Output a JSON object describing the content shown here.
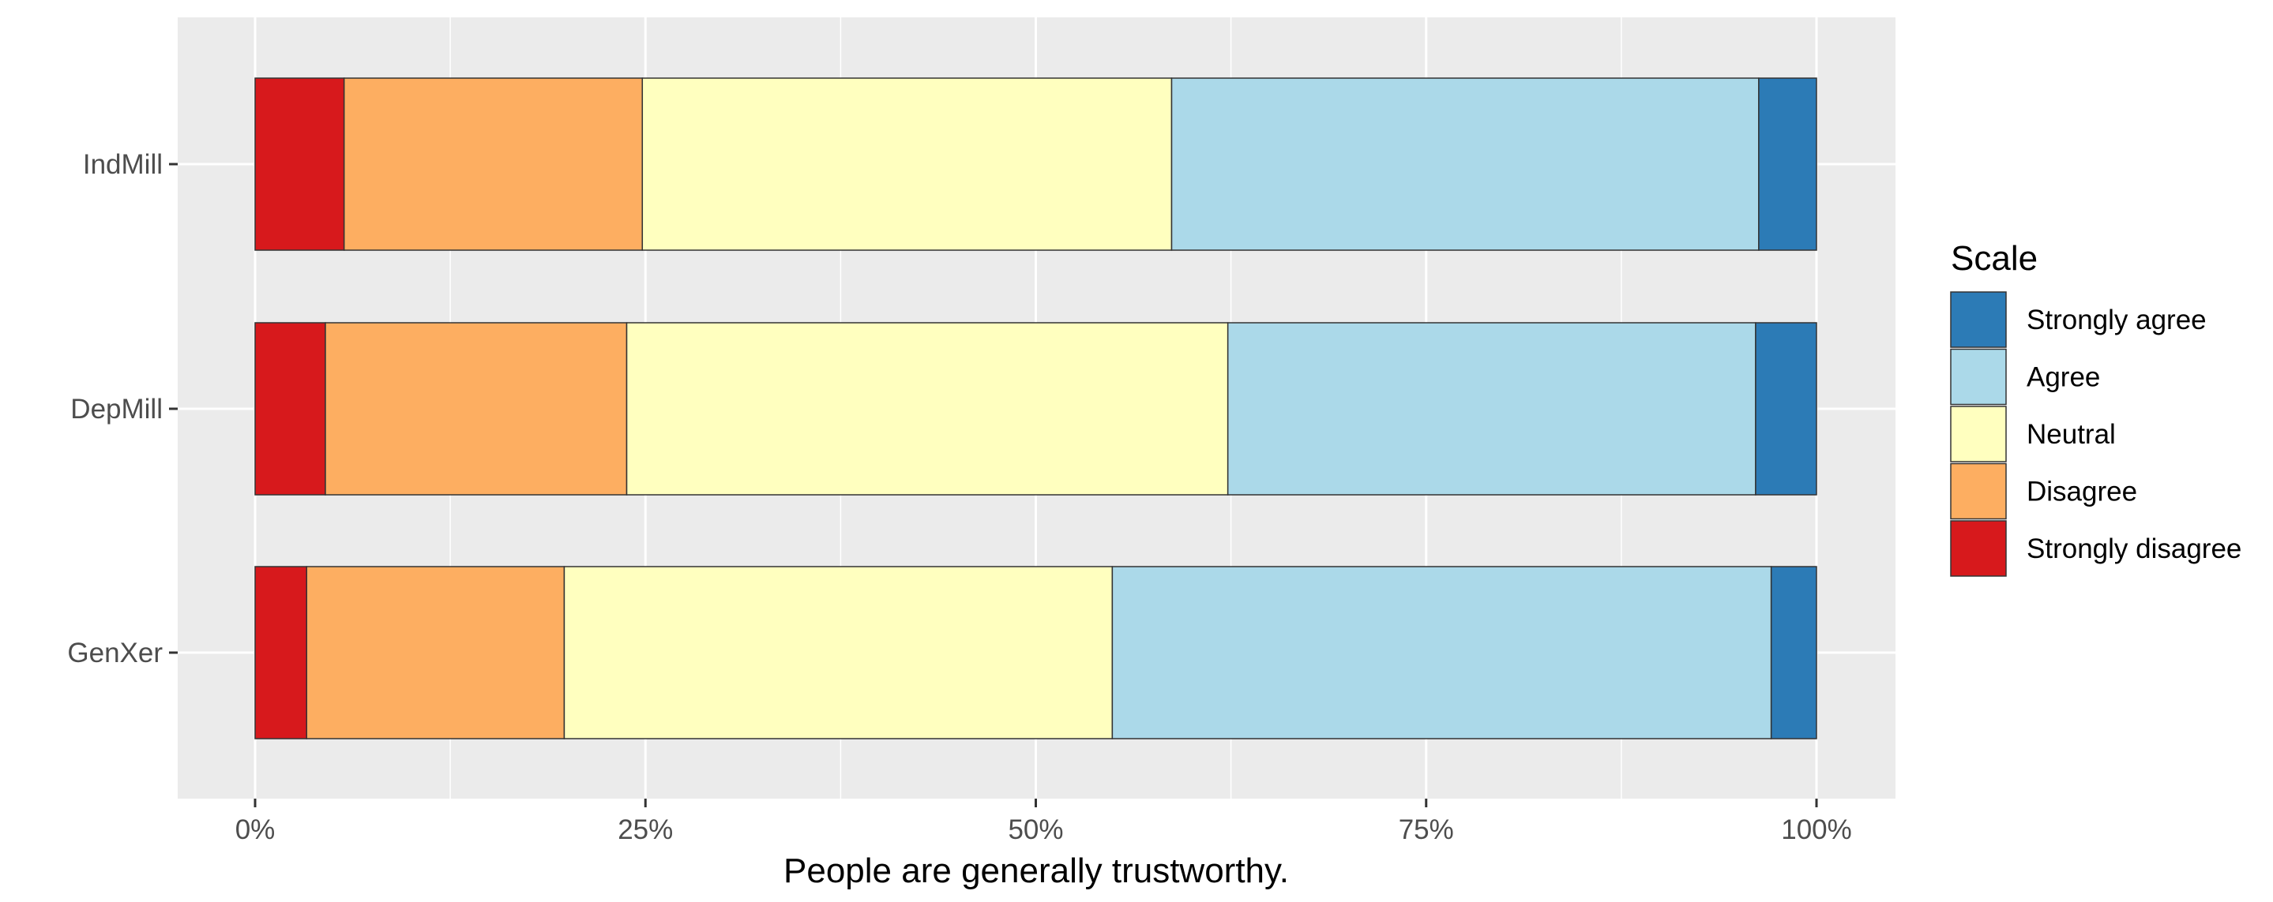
{
  "chart_data": {
    "type": "bar",
    "orientation": "horizontal",
    "stacked": true,
    "normalized": true,
    "categories": [
      "GenXer",
      "DepMill",
      "IndMill"
    ],
    "series": [
      {
        "name": "Strongly disagree",
        "color": "#d7191c",
        "values": [
          3.3,
          4.5,
          5.7
        ]
      },
      {
        "name": "Disagree",
        "color": "#fdae61",
        "values": [
          16.5,
          19.3,
          19.1
        ]
      },
      {
        "name": "Neutral",
        "color": "#ffffbf",
        "values": [
          35.1,
          38.5,
          33.9
        ]
      },
      {
        "name": "Agree",
        "color": "#abd9e9",
        "values": [
          42.2,
          33.8,
          37.6
        ]
      },
      {
        "name": "Strongly agree",
        "color": "#2c7bb6",
        "values": [
          2.9,
          3.9,
          3.7
        ]
      }
    ],
    "xlabel": "People are generally trustworthy.",
    "ylabel": "",
    "xlim": [
      0,
      100
    ],
    "x_ticks": [
      "0%",
      "25%",
      "50%",
      "75%",
      "100%"
    ],
    "legend": {
      "title": "Scale",
      "position": "right",
      "order": [
        "Strongly agree",
        "Agree",
        "Neutral",
        "Disagree",
        "Strongly disagree"
      ]
    },
    "grid": true,
    "panel_background": "#ebebeb",
    "grid_color": "#ffffff"
  }
}
